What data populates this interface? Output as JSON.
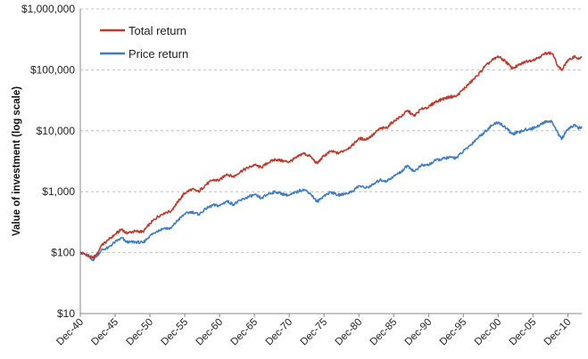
{
  "chart_data": {
    "type": "line",
    "title": "",
    "xlabel": "",
    "ylabel": "Value of investment (log scale)",
    "y_scale": "log",
    "ylim": [
      10,
      1000000
    ],
    "y_ticks": [
      "$10",
      "$100",
      "$1,000",
      "$10,000",
      "$100,000",
      "$1,000,000"
    ],
    "y_tick_values": [
      10,
      100,
      1000,
      10000,
      100000,
      1000000
    ],
    "x_ticks": [
      "Dec-40",
      "Dec-45",
      "Dec-50",
      "Dec-55",
      "Dec-60",
      "Dec-65",
      "Dec-70",
      "Dec-75",
      "Dec-80",
      "Dec-85",
      "Dec-90",
      "Dec-95",
      "Dec-00",
      "Dec-05",
      "Dec-10"
    ],
    "x_tick_values": [
      1940,
      1945,
      1950,
      1955,
      1960,
      1965,
      1970,
      1975,
      1980,
      1985,
      1990,
      1995,
      2000,
      2005,
      2010
    ],
    "xlim": [
      1940,
      2012
    ],
    "grid": "horizontal dashed",
    "legend_position": "top-left",
    "series": [
      {
        "name": "Total return",
        "color": "#c0392b",
        "points": [
          [
            1940.0,
            100
          ],
          [
            1941.0,
            92
          ],
          [
            1941.7,
            82
          ],
          [
            1942.3,
            90
          ],
          [
            1943.0,
            130
          ],
          [
            1944.0,
            160
          ],
          [
            1945.0,
            200
          ],
          [
            1946.0,
            245
          ],
          [
            1946.5,
            210
          ],
          [
            1947.0,
            215
          ],
          [
            1948.0,
            225
          ],
          [
            1949.0,
            220
          ],
          [
            1950.0,
            300
          ],
          [
            1951.0,
            380
          ],
          [
            1952.0,
            450
          ],
          [
            1953.0,
            480
          ],
          [
            1954.0,
            680
          ],
          [
            1955.0,
            950
          ],
          [
            1956.0,
            1100
          ],
          [
            1957.0,
            1000
          ],
          [
            1958.0,
            1300
          ],
          [
            1959.0,
            1550
          ],
          [
            1960.0,
            1550
          ],
          [
            1961.0,
            1950
          ],
          [
            1962.0,
            1750
          ],
          [
            1963.0,
            2150
          ],
          [
            1964.0,
            2450
          ],
          [
            1965.0,
            2750
          ],
          [
            1966.0,
            2500
          ],
          [
            1967.0,
            3000
          ],
          [
            1968.0,
            3400
          ],
          [
            1969.0,
            3200
          ],
          [
            1970.0,
            3100
          ],
          [
            1971.0,
            3600
          ],
          [
            1972.0,
            4300
          ],
          [
            1973.0,
            3800
          ],
          [
            1974.0,
            2900
          ],
          [
            1975.0,
            3900
          ],
          [
            1976.0,
            4600
          ],
          [
            1977.0,
            4300
          ],
          [
            1978.0,
            4800
          ],
          [
            1979.0,
            5700
          ],
          [
            1980.0,
            7500
          ],
          [
            1981.0,
            7200
          ],
          [
            1982.0,
            8500
          ],
          [
            1983.0,
            10800
          ],
          [
            1984.0,
            11200
          ],
          [
            1985.0,
            14500
          ],
          [
            1986.0,
            17000
          ],
          [
            1987.0,
            21500
          ],
          [
            1987.9,
            17500
          ],
          [
            1989.0,
            23000
          ],
          [
            1990.0,
            24500
          ],
          [
            1991.0,
            30000
          ],
          [
            1992.0,
            33000
          ],
          [
            1993.0,
            36000
          ],
          [
            1994.0,
            37000
          ],
          [
            1995.0,
            48000
          ],
          [
            1996.0,
            62000
          ],
          [
            1997.0,
            80000
          ],
          [
            1998.0,
            110000
          ],
          [
            1999.0,
            140000
          ],
          [
            2000.0,
            165000
          ],
          [
            2001.0,
            140000
          ],
          [
            2002.0,
            105000
          ],
          [
            2003.0,
            120000
          ],
          [
            2004.0,
            138000
          ],
          [
            2005.0,
            145000
          ],
          [
            2006.0,
            165000
          ],
          [
            2007.0,
            190000
          ],
          [
            2007.8,
            185000
          ],
          [
            2008.5,
            120000
          ],
          [
            2009.1,
            98000
          ],
          [
            2009.8,
            135000
          ],
          [
            2010.4,
            150000
          ],
          [
            2011.0,
            170000
          ],
          [
            2011.5,
            150000
          ],
          [
            2012.0,
            165000
          ]
        ]
      },
      {
        "name": "Price return",
        "color": "#3f7dc4",
        "points": [
          [
            1940.0,
            100
          ],
          [
            1941.0,
            90
          ],
          [
            1941.7,
            75
          ],
          [
            1942.3,
            85
          ],
          [
            1943.0,
            110
          ],
          [
            1944.0,
            120
          ],
          [
            1945.0,
            150
          ],
          [
            1946.0,
            175
          ],
          [
            1946.5,
            150
          ],
          [
            1947.0,
            148
          ],
          [
            1948.0,
            150
          ],
          [
            1949.0,
            145
          ],
          [
            1950.0,
            190
          ],
          [
            1951.0,
            225
          ],
          [
            1952.0,
            250
          ],
          [
            1953.0,
            250
          ],
          [
            1954.0,
            340
          ],
          [
            1955.0,
            430
          ],
          [
            1956.0,
            470
          ],
          [
            1957.0,
            420
          ],
          [
            1958.0,
            520
          ],
          [
            1959.0,
            600
          ],
          [
            1960.0,
            590
          ],
          [
            1961.0,
            700
          ],
          [
            1962.0,
            620
          ],
          [
            1963.0,
            720
          ],
          [
            1964.0,
            810
          ],
          [
            1965.0,
            890
          ],
          [
            1966.0,
            780
          ],
          [
            1967.0,
            920
          ],
          [
            1968.0,
            1000
          ],
          [
            1969.0,
            920
          ],
          [
            1970.0,
            870
          ],
          [
            1971.0,
            980
          ],
          [
            1972.0,
            1100
          ],
          [
            1973.0,
            950
          ],
          [
            1974.0,
            680
          ],
          [
            1975.0,
            860
          ],
          [
            1976.0,
            990
          ],
          [
            1977.0,
            880
          ],
          [
            1978.0,
            920
          ],
          [
            1979.0,
            1000
          ],
          [
            1980.0,
            1250
          ],
          [
            1981.0,
            1150
          ],
          [
            1982.0,
            1300
          ],
          [
            1983.0,
            1550
          ],
          [
            1984.0,
            1500
          ],
          [
            1985.0,
            1800
          ],
          [
            1986.0,
            2100
          ],
          [
            1987.0,
            2700
          ],
          [
            1987.9,
            2150
          ],
          [
            1989.0,
            2700
          ],
          [
            1990.0,
            2750
          ],
          [
            1991.0,
            3250
          ],
          [
            1992.0,
            3450
          ],
          [
            1993.0,
            3650
          ],
          [
            1994.0,
            3600
          ],
          [
            1995.0,
            4600
          ],
          [
            1996.0,
            5800
          ],
          [
            1997.0,
            7500
          ],
          [
            1998.0,
            9500
          ],
          [
            1999.0,
            12000
          ],
          [
            2000.0,
            13800
          ],
          [
            2001.0,
            11500
          ],
          [
            2002.0,
            8800
          ],
          [
            2003.0,
            9500
          ],
          [
            2004.0,
            10500
          ],
          [
            2005.0,
            11000
          ],
          [
            2006.0,
            12500
          ],
          [
            2007.0,
            14500
          ],
          [
            2007.8,
            13800
          ],
          [
            2008.5,
            9500
          ],
          [
            2009.1,
            7200
          ],
          [
            2009.8,
            10200
          ],
          [
            2010.4,
            11200
          ],
          [
            2011.0,
            12500
          ],
          [
            2011.5,
            10800
          ],
          [
            2012.0,
            11800
          ]
        ]
      }
    ]
  }
}
